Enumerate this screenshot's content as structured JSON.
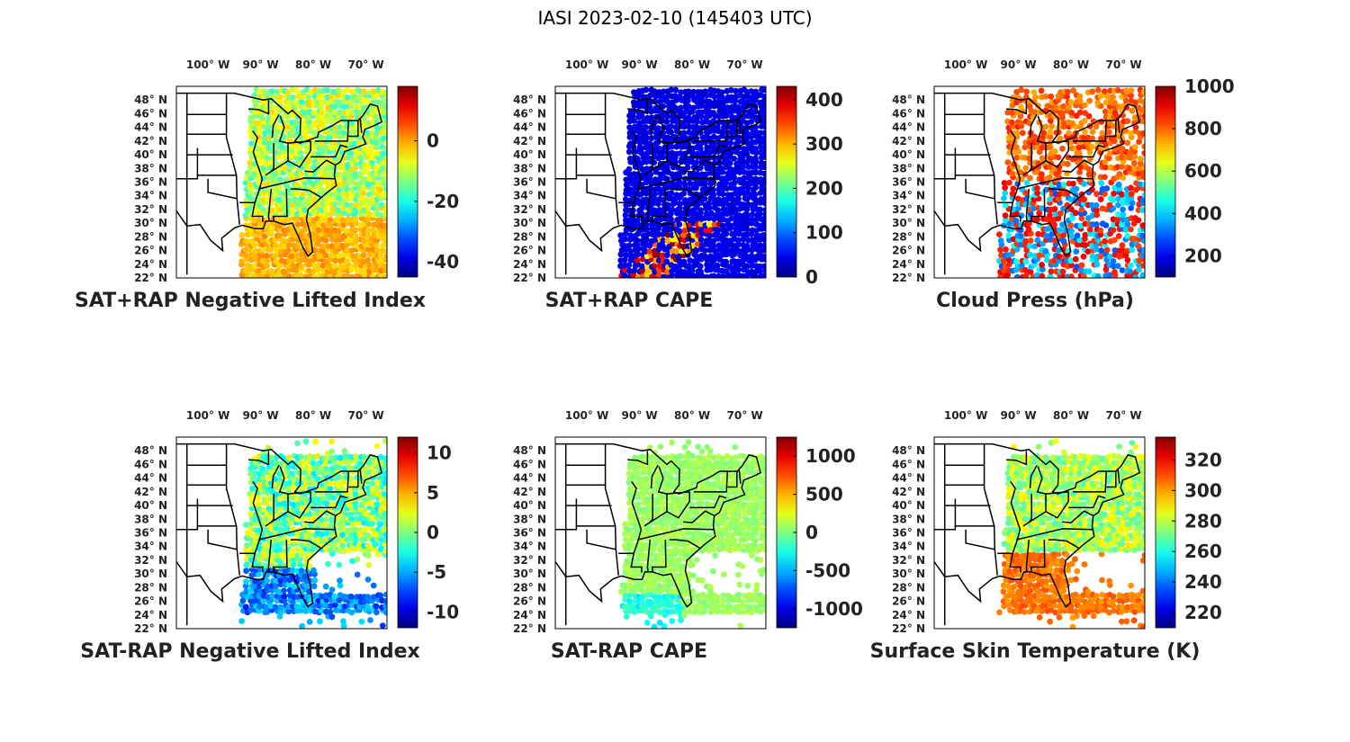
{
  "title": "IASI 2023-02-10 (145403 UTC)",
  "lon_labels": [
    "100° W",
    "90° W",
    "80° W",
    "70° W"
  ],
  "lat_labels": [
    "48° N",
    "46° N",
    "44° N",
    "42° N",
    "40° N",
    "38° N",
    "36° N",
    "34° N",
    "32° N",
    "30° N",
    "28° N",
    "26° N",
    "24° N",
    "22° N"
  ],
  "colormap": "jet",
  "panels": [
    {
      "id": "sat-rap-nli",
      "title": "SAT+RAP Negative Lifted Index",
      "colorbar": {
        "ticks": [
          "0",
          "-20",
          "-40"
        ],
        "tick_values": [
          0,
          -20,
          -40
        ],
        "range": [
          -45,
          18
        ]
      },
      "swath": "full"
    },
    {
      "id": "sat-rap-cape",
      "title": "SAT+RAP CAPE",
      "colorbar": {
        "ticks": [
          "400",
          "300",
          "200",
          "100",
          "0"
        ],
        "tick_values": [
          400,
          300,
          200,
          100,
          0
        ],
        "range": [
          0,
          430
        ]
      },
      "swath": "full"
    },
    {
      "id": "cloud-press",
      "title": "Cloud Press (hPa)",
      "colorbar": {
        "ticks": [
          "1000",
          "800",
          "600",
          "400",
          "200"
        ],
        "tick_values": [
          1000,
          800,
          600,
          400,
          200
        ],
        "range": [
          100,
          1000
        ]
      },
      "swath": "clouds"
    },
    {
      "id": "sat-minus-rap-nli",
      "title": "SAT-RAP Negative Lifted Index",
      "colorbar": {
        "ticks": [
          "10",
          "5",
          "0",
          "-5",
          "-10"
        ],
        "tick_values": [
          10,
          5,
          0,
          -5,
          -10
        ],
        "range": [
          -12,
          12
        ]
      },
      "swath": "partial"
    },
    {
      "id": "sat-minus-rap-cape",
      "title": "SAT-RAP CAPE",
      "colorbar": {
        "ticks": [
          "1000",
          "500",
          "0",
          "-500",
          "-1000"
        ],
        "tick_values": [
          1000,
          500,
          0,
          -500,
          -1000
        ],
        "range": [
          -1250,
          1250
        ]
      },
      "swath": "partial"
    },
    {
      "id": "skin-temp",
      "title": "Surface Skin Temperature (K)",
      "colorbar": {
        "ticks": [
          "320",
          "300",
          "280",
          "260",
          "240",
          "220"
        ],
        "tick_values": [
          320,
          300,
          280,
          260,
          240,
          220
        ],
        "range": [
          210,
          335
        ]
      },
      "swath": "partial"
    }
  ]
}
